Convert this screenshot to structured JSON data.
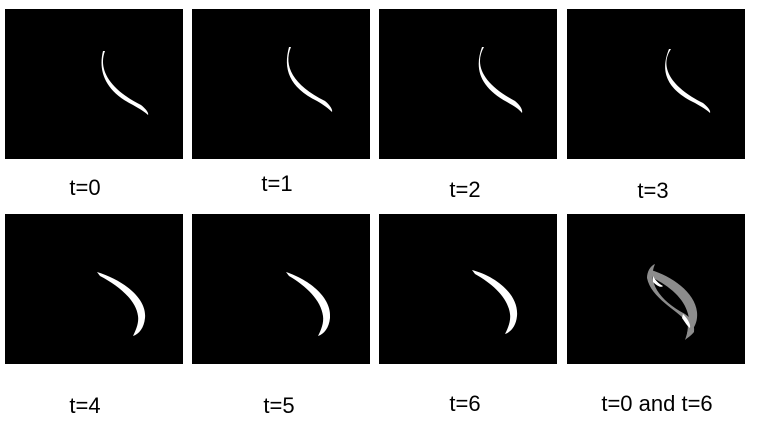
{
  "panels": [
    {
      "label": "t=0"
    },
    {
      "label": "t=1"
    },
    {
      "label": "t=2"
    },
    {
      "label": "t=3"
    },
    {
      "label": "t=4"
    },
    {
      "label": "t=5"
    },
    {
      "label": "t=6"
    },
    {
      "label": "t=0 and t=6"
    }
  ],
  "colors": {
    "background": "#000000",
    "worm": "#ffffff",
    "overlay_worm": "#8c8c8c"
  }
}
